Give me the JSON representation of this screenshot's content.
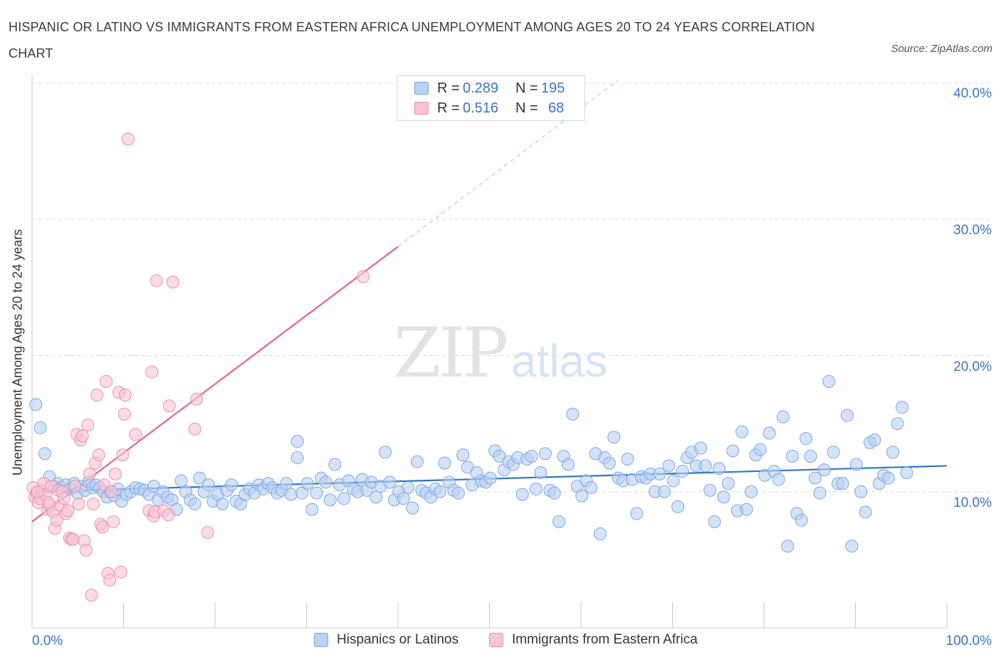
{
  "title": "HISPANIC OR LATINO VS IMMIGRANTS FROM EASTERN AFRICA UNEMPLOYMENT AMONG AGES 20 TO 24 YEARS CORRELATION CHART",
  "source": "Source: ZipAtlas.com",
  "watermark": {
    "zip": "ZIP",
    "atlas": "atlas"
  },
  "colors": {
    "blue_fill": "#b9d1f3",
    "blue_stroke": "#7ea6e0",
    "blue_line": "#2f74d0",
    "pink_fill": "#f8c5d5",
    "pink_stroke": "#eb8fae",
    "pink_line": "#e8628c",
    "grid": "#dcdcdc",
    "accent_text": "#3a72c7"
  },
  "legend_top": [
    {
      "r_label": "R =",
      "r_value": "0.289",
      "n_label": "N =",
      "n_value": "195",
      "series": "blue"
    },
    {
      "r_label": "R =",
      "r_value": "0.516",
      "n_label": "N =",
      "n_value": "68",
      "series": "pink"
    }
  ],
  "legend_bottom": [
    {
      "label": "Hispanics or Latinos",
      "series": "blue"
    },
    {
      "label": "Immigrants from Eastern Africa",
      "series": "pink"
    }
  ],
  "chart_data": {
    "type": "scatter",
    "title": "HISPANIC OR LATINO VS IMMIGRANTS FROM EASTERN AFRICA UNEMPLOYMENT AMONG AGES 20 TO 24 YEARS CORRELATION CHART",
    "xlabel": "",
    "ylabel": "Unemployment Among Ages 20 to 24 years",
    "xlim": [
      0,
      100
    ],
    "ylim": [
      0,
      40
    ],
    "x_tick_labels": [
      "0.0%",
      "100.0%"
    ],
    "y_ticks": [
      10,
      20,
      30,
      40
    ],
    "y_tick_labels": [
      "10.0%",
      "20.0%",
      "30.0%",
      "40.0%"
    ],
    "grid": "horizontal dashed",
    "legend_position": "top-center and bottom",
    "series": [
      {
        "name": "Hispanics or Latinos",
        "color": "blue",
        "trend": {
          "x": [
            0,
            100
          ],
          "y": [
            10.0,
            11.9
          ]
        },
        "points": [
          [
            0.4,
            16.4
          ],
          [
            0.9,
            14.7
          ],
          [
            1.4,
            12.8
          ],
          [
            1.9,
            11.1
          ],
          [
            2.4,
            10.4
          ],
          [
            2.8,
            10.6
          ],
          [
            3.2,
            10.3
          ],
          [
            3.7,
            10.5
          ],
          [
            4.2,
            10.2
          ],
          [
            4.6,
            10.6
          ],
          [
            5.0,
            9.9
          ],
          [
            5.4,
            10.4
          ],
          [
            5.8,
            10.1
          ],
          [
            6.2,
            10.7
          ],
          [
            6.6,
            10.3
          ],
          [
            7.0,
            10.5
          ],
          [
            7.4,
            10.3
          ],
          [
            7.8,
            10.0
          ],
          [
            8.2,
            9.6
          ],
          [
            8.6,
            10.0
          ],
          [
            9.0,
            9.7
          ],
          [
            9.4,
            10.2
          ],
          [
            9.8,
            9.3
          ],
          [
            10.3,
            9.8
          ],
          [
            10.8,
            10.0
          ],
          [
            11.3,
            10.3
          ],
          [
            11.8,
            10.2
          ],
          [
            12.3,
            10.1
          ],
          [
            12.8,
            9.8
          ],
          [
            13.3,
            10.4
          ],
          [
            13.8,
            9.4
          ],
          [
            14.3,
            10.0
          ],
          [
            14.8,
            9.6
          ],
          [
            15.3,
            9.4
          ],
          [
            15.8,
            8.7
          ],
          [
            16.3,
            10.8
          ],
          [
            16.8,
            10.0
          ],
          [
            17.3,
            9.4
          ],
          [
            17.8,
            9.1
          ],
          [
            18.3,
            11.0
          ],
          [
            18.8,
            10.0
          ],
          [
            19.3,
            10.5
          ],
          [
            19.8,
            9.3
          ],
          [
            20.3,
            9.8
          ],
          [
            20.8,
            9.1
          ],
          [
            21.3,
            10.1
          ],
          [
            21.8,
            10.5
          ],
          [
            22.3,
            9.3
          ],
          [
            22.8,
            9.1
          ],
          [
            23.3,
            9.8
          ],
          [
            23.8,
            10.2
          ],
          [
            24.3,
            9.9
          ],
          [
            24.8,
            10.5
          ],
          [
            25.3,
            10.2
          ],
          [
            25.8,
            10.6
          ],
          [
            26.3,
            10.3
          ],
          [
            26.8,
            9.9
          ],
          [
            27.3,
            10.1
          ],
          [
            27.8,
            10.6
          ],
          [
            28.3,
            9.8
          ],
          [
            29.0,
            12.5
          ],
          [
            29.0,
            13.7
          ],
          [
            29.5,
            9.9
          ],
          [
            30.1,
            10.6
          ],
          [
            30.6,
            8.7
          ],
          [
            31.1,
            9.9
          ],
          [
            31.6,
            11.0
          ],
          [
            32.1,
            10.7
          ],
          [
            32.6,
            9.4
          ],
          [
            33.1,
            12.0
          ],
          [
            33.6,
            10.5
          ],
          [
            34.1,
            9.5
          ],
          [
            34.6,
            10.8
          ],
          [
            35.1,
            10.2
          ],
          [
            35.6,
            10.0
          ],
          [
            36.1,
            10.9
          ],
          [
            36.6,
            10.1
          ],
          [
            37.1,
            10.7
          ],
          [
            37.6,
            9.6
          ],
          [
            38.1,
            10.4
          ],
          [
            38.6,
            12.9
          ],
          [
            39.1,
            10.7
          ],
          [
            39.6,
            9.4
          ],
          [
            40.1,
            10.0
          ],
          [
            40.6,
            9.5
          ],
          [
            41.1,
            10.3
          ],
          [
            41.6,
            8.8
          ],
          [
            42.1,
            12.2
          ],
          [
            42.6,
            10.1
          ],
          [
            43.1,
            9.9
          ],
          [
            43.6,
            9.6
          ],
          [
            44.1,
            10.2
          ],
          [
            44.6,
            10.0
          ],
          [
            45.1,
            12.1
          ],
          [
            45.6,
            10.7
          ],
          [
            46.1,
            10.1
          ],
          [
            46.6,
            9.9
          ],
          [
            47.1,
            12.7
          ],
          [
            47.6,
            11.8
          ],
          [
            48.1,
            10.5
          ],
          [
            48.6,
            11.4
          ],
          [
            49.1,
            10.8
          ],
          [
            49.6,
            10.7
          ],
          [
            50.1,
            11.0
          ],
          [
            50.6,
            13.0
          ],
          [
            51.1,
            12.6
          ],
          [
            51.6,
            11.6
          ],
          [
            52.1,
            12.2
          ],
          [
            52.6,
            12.0
          ],
          [
            53.1,
            12.5
          ],
          [
            53.6,
            9.8
          ],
          [
            54.1,
            12.4
          ],
          [
            54.6,
            12.6
          ],
          [
            55.1,
            10.2
          ],
          [
            55.6,
            11.4
          ],
          [
            56.1,
            12.8
          ],
          [
            56.6,
            10.1
          ],
          [
            57.1,
            9.9
          ],
          [
            57.6,
            7.8
          ],
          [
            58.1,
            12.6
          ],
          [
            58.6,
            12.0
          ],
          [
            59.1,
            15.7
          ],
          [
            59.6,
            10.4
          ],
          [
            60.1,
            9.7
          ],
          [
            60.6,
            10.8
          ],
          [
            61.1,
            10.3
          ],
          [
            61.6,
            12.8
          ],
          [
            62.1,
            6.9
          ],
          [
            62.6,
            12.5
          ],
          [
            63.1,
            12.1
          ],
          [
            63.6,
            14.0
          ],
          [
            64.1,
            11.0
          ],
          [
            64.6,
            10.8
          ],
          [
            65.1,
            12.4
          ],
          [
            65.6,
            10.9
          ],
          [
            66.1,
            8.4
          ],
          [
            66.6,
            11.1
          ],
          [
            67.1,
            11.0
          ],
          [
            67.6,
            11.3
          ],
          [
            68.1,
            10.0
          ],
          [
            68.6,
            11.3
          ],
          [
            69.1,
            10.0
          ],
          [
            69.6,
            11.9
          ],
          [
            70.1,
            10.8
          ],
          [
            70.6,
            8.9
          ],
          [
            71.1,
            11.5
          ],
          [
            71.6,
            12.5
          ],
          [
            72.1,
            12.9
          ],
          [
            72.6,
            11.9
          ],
          [
            73.1,
            13.2
          ],
          [
            73.6,
            11.9
          ],
          [
            74.1,
            10.1
          ],
          [
            74.6,
            7.8
          ],
          [
            75.1,
            11.7
          ],
          [
            75.6,
            9.6
          ],
          [
            76.1,
            10.6
          ],
          [
            76.6,
            13.0
          ],
          [
            77.1,
            8.6
          ],
          [
            77.6,
            14.4
          ],
          [
            78.1,
            8.7
          ],
          [
            78.6,
            10.0
          ],
          [
            79.1,
            12.7
          ],
          [
            79.6,
            13.1
          ],
          [
            80.1,
            11.2
          ],
          [
            80.6,
            14.3
          ],
          [
            81.1,
            11.5
          ],
          [
            81.6,
            10.9
          ],
          [
            82.1,
            15.5
          ],
          [
            82.6,
            6.0
          ],
          [
            83.1,
            12.6
          ],
          [
            83.6,
            8.4
          ],
          [
            84.1,
            7.9
          ],
          [
            84.6,
            13.9
          ],
          [
            85.1,
            12.6
          ],
          [
            85.6,
            11.0
          ],
          [
            86.1,
            9.9
          ],
          [
            86.6,
            11.6
          ],
          [
            87.1,
            18.1
          ],
          [
            87.6,
            12.9
          ],
          [
            88.1,
            10.6
          ],
          [
            88.6,
            10.6
          ],
          [
            89.1,
            15.6
          ],
          [
            89.6,
            6.0
          ],
          [
            90.1,
            12.0
          ],
          [
            90.6,
            10.0
          ],
          [
            91.1,
            8.5
          ],
          [
            91.6,
            13.6
          ],
          [
            92.1,
            13.8
          ],
          [
            92.6,
            10.6
          ],
          [
            93.1,
            11.2
          ],
          [
            93.6,
            11.0
          ],
          [
            94.1,
            12.9
          ],
          [
            94.6,
            15.0
          ],
          [
            95.1,
            16.2
          ],
          [
            95.6,
            11.4
          ]
        ]
      },
      {
        "name": "Immigrants from Eastern Africa",
        "color": "pink",
        "trend": {
          "x": [
            0,
            40
          ],
          "y": [
            7.8,
            28.0
          ]
        },
        "trend_dashed": {
          "x": [
            40,
            64
          ],
          "y": [
            28.0,
            40.2
          ]
        },
        "points": [
          [
            0.1,
            10.3
          ],
          [
            0.3,
            9.6
          ],
          [
            0.5,
            9.9
          ],
          [
            0.7,
            9.2
          ],
          [
            0.9,
            9.5
          ],
          [
            1.1,
            10.1
          ],
          [
            1.3,
            10.6
          ],
          [
            1.5,
            9.8
          ],
          [
            1.7,
            8.7
          ],
          [
            1.9,
            9.0
          ],
          [
            2.1,
            10.4
          ],
          [
            2.3,
            8.5
          ],
          [
            2.5,
            7.3
          ],
          [
            2.7,
            7.9
          ],
          [
            2.9,
            10.1
          ],
          [
            3.1,
            9.0
          ],
          [
            3.3,
            10.0
          ],
          [
            3.5,
            9.5
          ],
          [
            3.7,
            8.4
          ],
          [
            3.9,
            8.6
          ],
          [
            4.1,
            6.6
          ],
          [
            4.3,
            6.5
          ],
          [
            4.5,
            6.5
          ],
          [
            4.7,
            10.4
          ],
          [
            4.9,
            14.2
          ],
          [
            5.1,
            9.1
          ],
          [
            5.3,
            13.8
          ],
          [
            5.5,
            14.1
          ],
          [
            5.7,
            6.4
          ],
          [
            5.9,
            5.7
          ],
          [
            6.1,
            14.9
          ],
          [
            6.3,
            11.3
          ],
          [
            6.5,
            2.4
          ],
          [
            6.7,
            9.1
          ],
          [
            6.9,
            12.1
          ],
          [
            7.1,
            17.1
          ],
          [
            7.3,
            12.7
          ],
          [
            7.5,
            7.6
          ],
          [
            7.7,
            7.4
          ],
          [
            7.9,
            10.5
          ],
          [
            8.1,
            18.1
          ],
          [
            8.3,
            4.0
          ],
          [
            8.5,
            3.5
          ],
          [
            8.7,
            10.0
          ],
          [
            8.9,
            7.8
          ],
          [
            9.1,
            11.3
          ],
          [
            9.5,
            17.3
          ],
          [
            9.7,
            4.1
          ],
          [
            9.9,
            12.7
          ],
          [
            10.1,
            15.7
          ],
          [
            10.2,
            17.1
          ],
          [
            10.5,
            35.9
          ],
          [
            11.3,
            14.2
          ],
          [
            12.8,
            8.6
          ],
          [
            13.1,
            18.8
          ],
          [
            13.3,
            8.2
          ],
          [
            13.4,
            8.5
          ],
          [
            13.6,
            25.5
          ],
          [
            14.4,
            8.6
          ],
          [
            14.9,
            8.3
          ],
          [
            15.0,
            16.3
          ],
          [
            15.4,
            25.4
          ],
          [
            17.8,
            14.6
          ],
          [
            18.0,
            16.8
          ],
          [
            19.2,
            7.0
          ],
          [
            36.2,
            25.8
          ],
          [
            0.6,
            10.0
          ],
          [
            1.8,
            9.2
          ]
        ]
      }
    ]
  }
}
